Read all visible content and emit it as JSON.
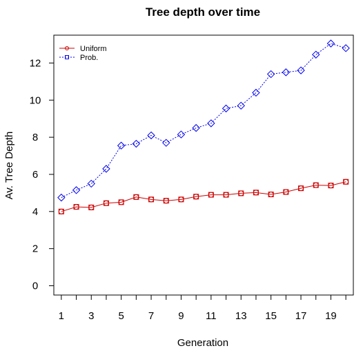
{
  "chart_data": {
    "type": "line",
    "title": "Tree depth over time",
    "xlabel": "Generation",
    "ylabel": "Av. Tree Depth",
    "x": [
      1,
      2,
      3,
      4,
      5,
      6,
      7,
      8,
      9,
      10,
      11,
      12,
      13,
      14,
      15,
      16,
      17,
      18,
      19,
      20
    ],
    "xticks": [
      1,
      3,
      5,
      7,
      9,
      11,
      13,
      15,
      17,
      19
    ],
    "yticks": [
      0,
      2,
      4,
      6,
      8,
      10,
      12
    ],
    "xlim": [
      0.5,
      20.5
    ],
    "ylim": [
      -0.5,
      13.5
    ],
    "grid": false,
    "legend_position": "top-left",
    "series": [
      {
        "name": "Uniform",
        "color": "#cc0000",
        "line_style": "solid",
        "marker": "circle-square",
        "values": [
          4.0,
          4.25,
          4.22,
          4.45,
          4.5,
          4.78,
          4.65,
          4.58,
          4.65,
          4.8,
          4.9,
          4.9,
          4.98,
          5.02,
          4.92,
          5.05,
          5.25,
          5.42,
          5.4,
          5.6
        ]
      },
      {
        "name": "Prob.",
        "color": "#0000ee",
        "line_style": "dotted",
        "marker": "diamond",
        "values": [
          4.75,
          5.15,
          5.5,
          6.3,
          7.55,
          7.65,
          8.1,
          7.7,
          8.15,
          8.5,
          8.75,
          9.55,
          9.7,
          10.4,
          11.4,
          11.5,
          11.6,
          12.45,
          13.05,
          12.8
        ]
      }
    ]
  }
}
